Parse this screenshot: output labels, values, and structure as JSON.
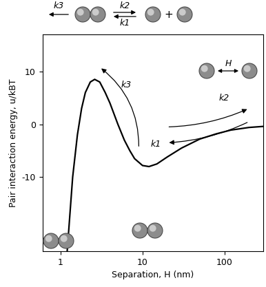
{
  "chart_data": {
    "type": "line",
    "x_label": "Separation, H (nm)",
    "y_label": "Pair interaction energy, u/kBT",
    "x": [
      1.2,
      1.4,
      1.6,
      1.8,
      2.0,
      2.3,
      2.6,
      3.0,
      3.5,
      4,
      5,
      6,
      7,
      8,
      10,
      12,
      15,
      20,
      30,
      50,
      80,
      120,
      200,
      300
    ],
    "values": [
      -24,
      -10,
      -2,
      3,
      6,
      8,
      8.5,
      8,
      6,
      4,
      0,
      -3,
      -5,
      -6.5,
      -7.8,
      -8,
      -7.5,
      -6.2,
      -4.5,
      -2.8,
      -1.8,
      -1.1,
      -0.6,
      -0.4
    ],
    "color": "#000000",
    "log": "x",
    "xlim": [
      0.6,
      300
    ],
    "ylim": [
      -24,
      17
    ],
    "xticks": [
      1,
      10,
      100
    ],
    "yticks": [
      -10,
      0,
      10
    ],
    "annotations": {
      "k1": "k1",
      "k2": "k2",
      "k3": "k3",
      "H": "H",
      "plus": "+"
    }
  }
}
